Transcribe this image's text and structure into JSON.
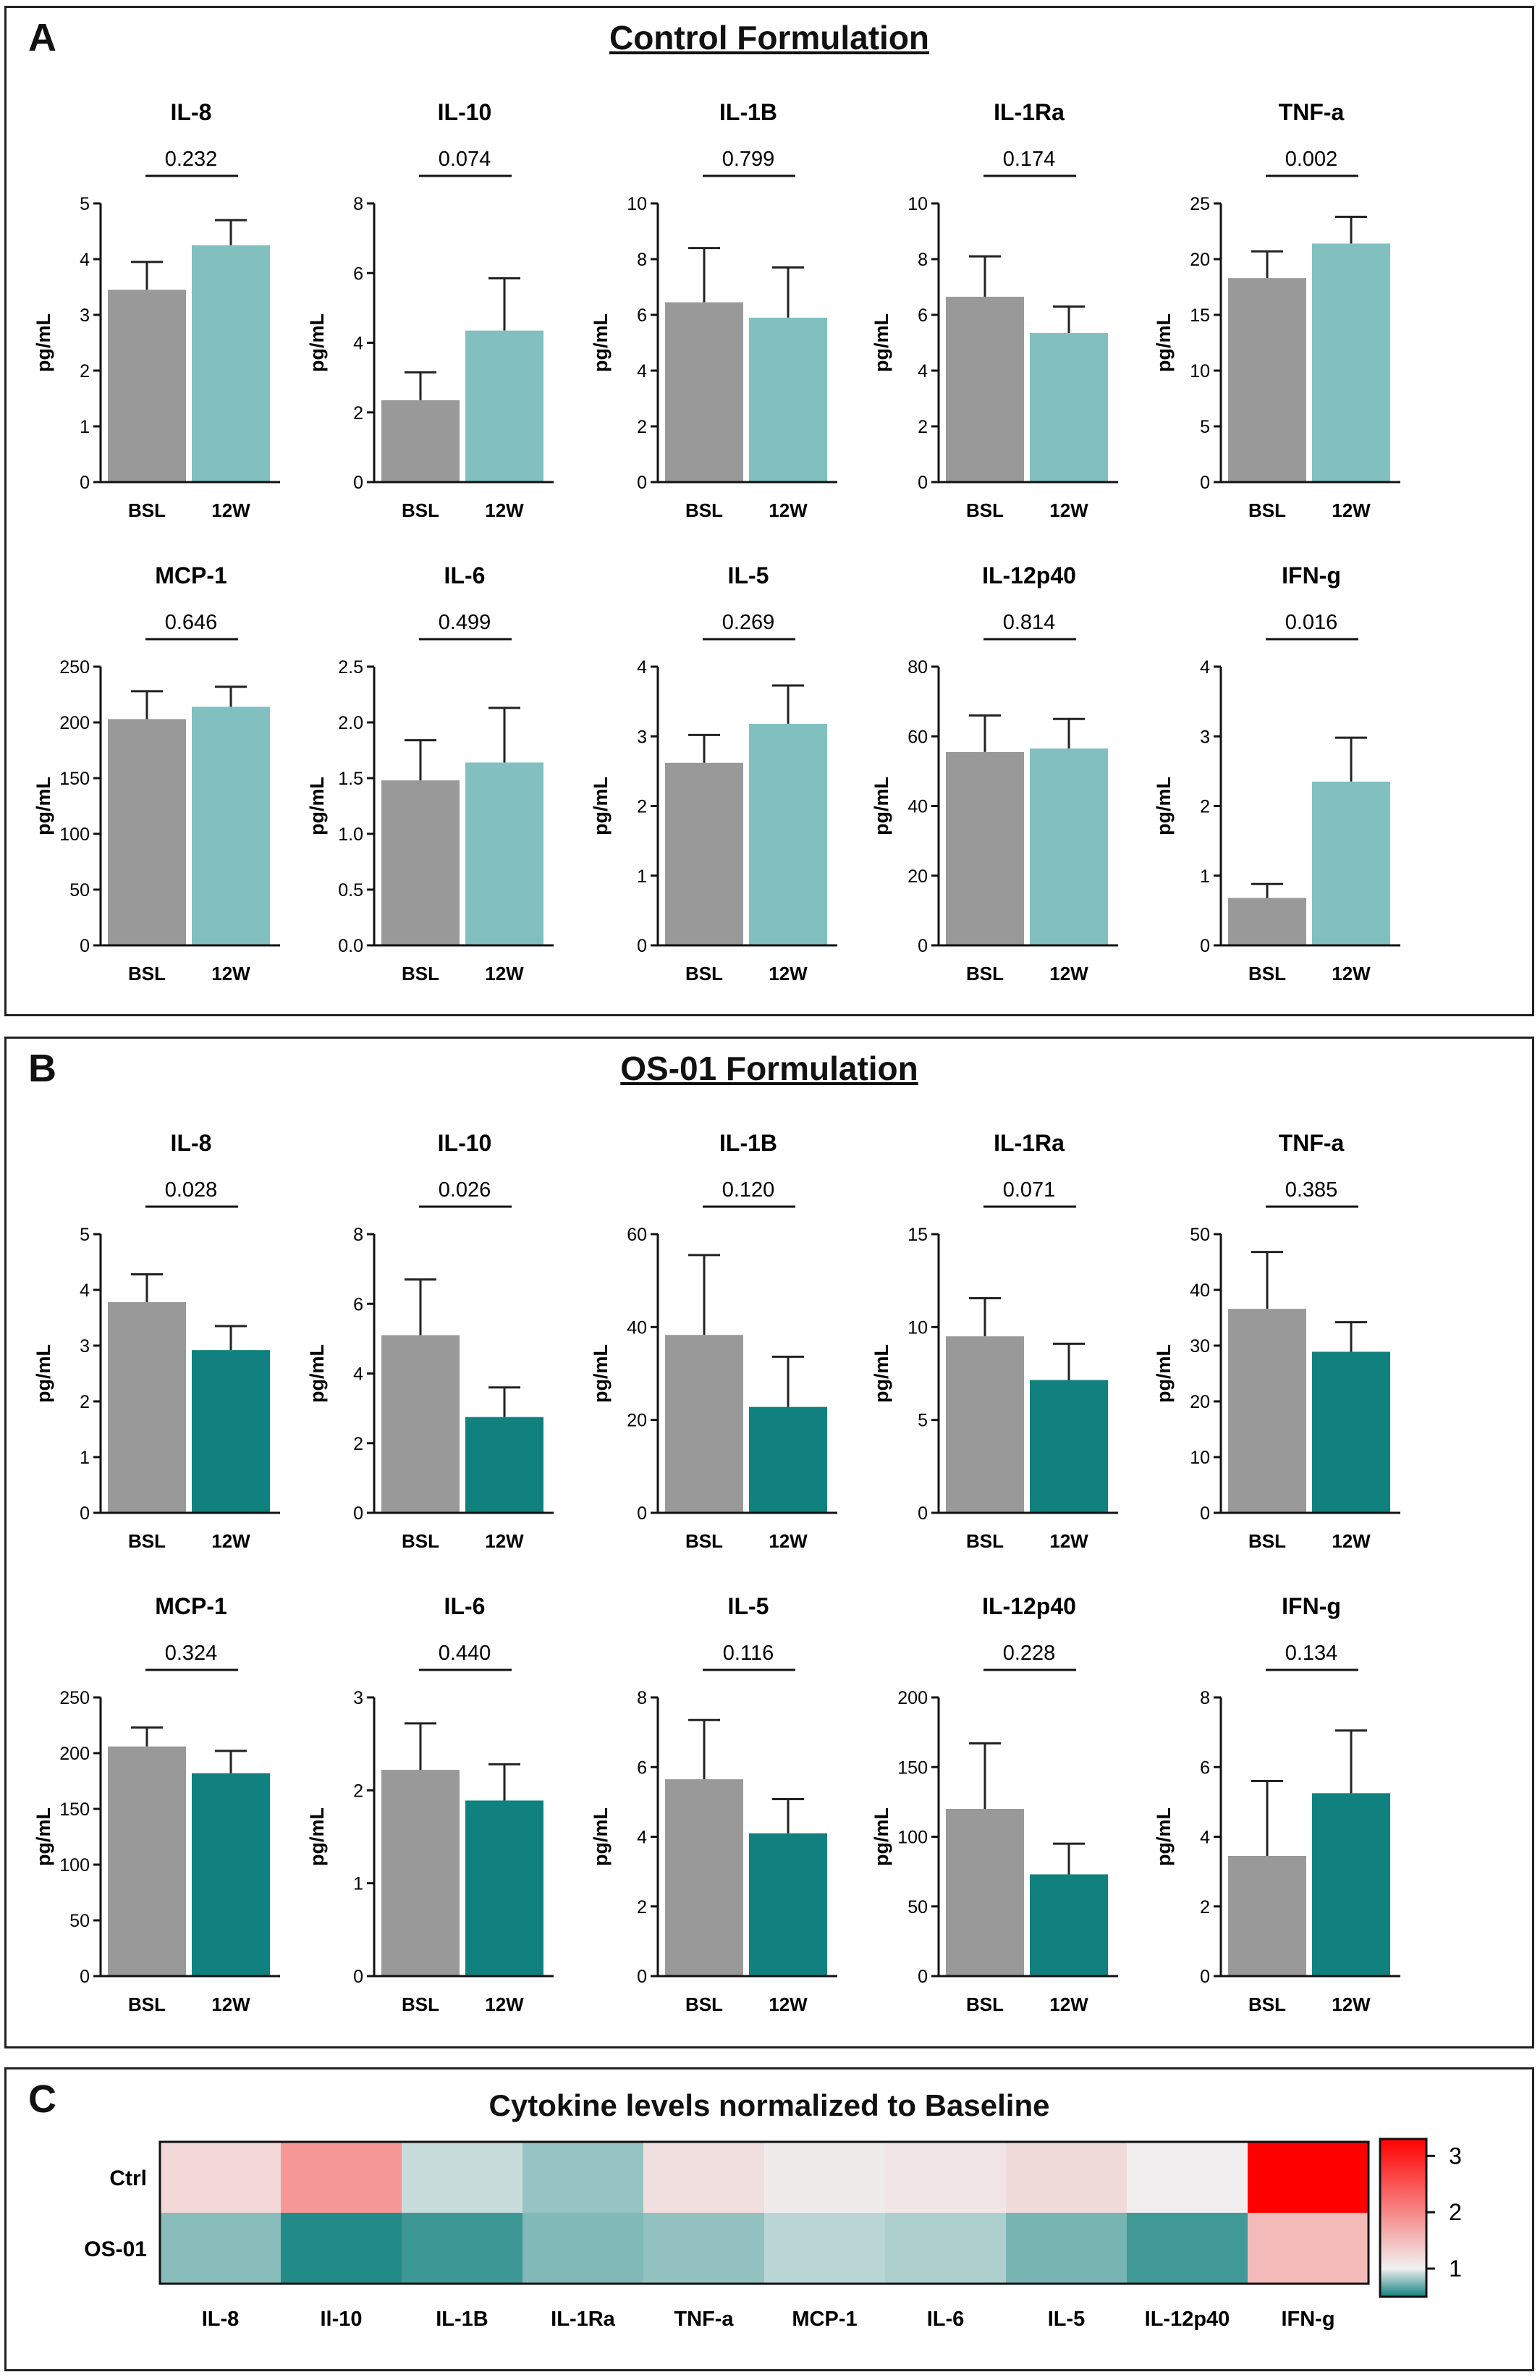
{
  "colors": {
    "bsl": "#999999",
    "ctrl_12w": "#82C0C0",
    "os01_12w": "#10817E",
    "heat_low": "#10817E",
    "heat_mid": "#F0F0F0",
    "heat_high": "#FF0000"
  },
  "panel_a": {
    "letter": "A",
    "title": "Control Formulation"
  },
  "panel_b": {
    "letter": "B",
    "title": "OS-01 Formulation"
  },
  "panel_c": {
    "letter": "C",
    "title": "Cytokine levels normalized to Baseline"
  },
  "chart_data": [
    {
      "group": "Control Formulation",
      "type": "bar",
      "categories": [
        "BSL",
        "12W"
      ],
      "ylabel": "pg/mL",
      "panels": [
        {
          "title": "IL-8",
          "p": "0.232",
          "ylim": [
            0,
            5
          ],
          "ticks": [
            "0",
            "1",
            "2",
            "3",
            "4",
            "5"
          ],
          "values": [
            3.45,
            4.25
          ],
          "errors": [
            0.5,
            0.45
          ]
        },
        {
          "title": "IL-10",
          "p": "0.074",
          "ylim": [
            0,
            8
          ],
          "ticks": [
            "0",
            "2",
            "4",
            "6",
            "8"
          ],
          "values": [
            2.35,
            4.35
          ],
          "errors": [
            0.8,
            1.5
          ]
        },
        {
          "title": "IL-1B",
          "p": "0.799",
          "ylim": [
            0,
            10
          ],
          "ticks": [
            "0",
            "2",
            "4",
            "6",
            "8",
            "10"
          ],
          "values": [
            6.45,
            5.9
          ],
          "errors": [
            1.95,
            1.8
          ]
        },
        {
          "title": "IL-1Ra",
          "p": "0.174",
          "ylim": [
            0,
            10
          ],
          "ticks": [
            "0",
            "2",
            "4",
            "6",
            "8",
            "10"
          ],
          "values": [
            6.65,
            5.35
          ],
          "errors": [
            1.45,
            0.95
          ]
        },
        {
          "title": "TNF-a",
          "p": "0.002",
          "ylim": [
            0,
            25
          ],
          "ticks": [
            "0",
            "5",
            "10",
            "15",
            "20",
            "25"
          ],
          "values": [
            18.3,
            21.4
          ],
          "errors": [
            2.4,
            2.4
          ]
        },
        {
          "title": "MCP-1",
          "p": "0.646",
          "ylim": [
            0,
            250
          ],
          "ticks": [
            "0",
            "50",
            "100",
            "150",
            "200",
            "250"
          ],
          "values": [
            203,
            214
          ],
          "errors": [
            25,
            18
          ]
        },
        {
          "title": "IL-6",
          "p": "0.499",
          "ylim": [
            0,
            2.5
          ],
          "ticks": [
            "0.0",
            "0.5",
            "1.0",
            "1.5",
            "2.0",
            "2.5"
          ],
          "values": [
            1.48,
            1.64
          ],
          "errors": [
            0.36,
            0.49
          ]
        },
        {
          "title": "IL-5",
          "p": "0.269",
          "ylim": [
            0,
            4
          ],
          "ticks": [
            "0",
            "1",
            "2",
            "3",
            "4"
          ],
          "values": [
            2.62,
            3.18
          ],
          "errors": [
            0.4,
            0.55
          ]
        },
        {
          "title": "IL-12p40",
          "p": "0.814",
          "ylim": [
            0,
            80
          ],
          "ticks": [
            "0",
            "20",
            "40",
            "60",
            "80"
          ],
          "values": [
            55.5,
            56.5
          ],
          "errors": [
            10.5,
            8.5
          ]
        },
        {
          "title": "IFN-g",
          "p": "0.016",
          "ylim": [
            0,
            4
          ],
          "ticks": [
            "0",
            "1",
            "2",
            "3",
            "4"
          ],
          "values": [
            0.68,
            2.35
          ],
          "errors": [
            0.2,
            0.63
          ]
        }
      ]
    },
    {
      "group": "OS-01 Formulation",
      "type": "bar",
      "categories": [
        "BSL",
        "12W"
      ],
      "ylabel": "pg/mL",
      "panels": [
        {
          "title": "IL-8",
          "p": "0.028",
          "ylim": [
            0,
            5
          ],
          "ticks": [
            "0",
            "1",
            "2",
            "3",
            "4",
            "5"
          ],
          "values": [
            3.78,
            2.92
          ],
          "errors": [
            0.5,
            0.43
          ]
        },
        {
          "title": "IL-10",
          "p": "0.026",
          "ylim": [
            0,
            8
          ],
          "ticks": [
            "0",
            "2",
            "4",
            "6",
            "8"
          ],
          "values": [
            5.1,
            2.75
          ],
          "errors": [
            1.6,
            0.85
          ]
        },
        {
          "title": "IL-1B",
          "p": "0.120",
          "ylim": [
            0,
            60
          ],
          "ticks": [
            "0",
            "20",
            "40",
            "60"
          ],
          "values": [
            38.3,
            22.8
          ],
          "errors": [
            17.2,
            10.8
          ]
        },
        {
          "title": "IL-1Ra",
          "p": "0.071",
          "ylim": [
            0,
            15
          ],
          "ticks": [
            "0",
            "5",
            "10",
            "15"
          ],
          "values": [
            9.5,
            7.15
          ],
          "errors": [
            2.05,
            1.95
          ]
        },
        {
          "title": "TNF-a",
          "p": "0.385",
          "ylim": [
            0,
            50
          ],
          "ticks": [
            "0",
            "10",
            "20",
            "30",
            "40",
            "50"
          ],
          "values": [
            36.6,
            28.9
          ],
          "errors": [
            10.2,
            5.3
          ]
        },
        {
          "title": "MCP-1",
          "p": "0.324",
          "ylim": [
            0,
            250
          ],
          "ticks": [
            "0",
            "50",
            "100",
            "150",
            "200",
            "250"
          ],
          "values": [
            206,
            182
          ],
          "errors": [
            17,
            20
          ]
        },
        {
          "title": "IL-6",
          "p": "0.440",
          "ylim": [
            0,
            3
          ],
          "ticks": [
            "0",
            "1",
            "2",
            "3"
          ],
          "values": [
            2.22,
            1.89
          ],
          "errors": [
            0.5,
            0.39
          ]
        },
        {
          "title": "IL-5",
          "p": "0.116",
          "ylim": [
            0,
            8
          ],
          "ticks": [
            "0",
            "2",
            "4",
            "6",
            "8"
          ],
          "values": [
            5.65,
            4.1
          ],
          "errors": [
            1.7,
            0.98
          ]
        },
        {
          "title": "IL-12p40",
          "p": "0.228",
          "ylim": [
            0,
            200
          ],
          "ticks": [
            "0",
            "50",
            "100",
            "150",
            "200"
          ],
          "values": [
            120,
            73
          ],
          "errors": [
            47,
            22
          ]
        },
        {
          "title": "IFN-g",
          "p": "0.134",
          "ylim": [
            0,
            8
          ],
          "ticks": [
            "0",
            "2",
            "4",
            "6",
            "8"
          ],
          "values": [
            3.45,
            5.25
          ],
          "errors": [
            2.15,
            1.8
          ]
        }
      ]
    },
    {
      "type": "heatmap",
      "title": "Cytokine levels normalized to Baseline",
      "rows": [
        "Ctrl",
        "OS-01"
      ],
      "columns": [
        "IL-8",
        "Il-10",
        "IL-1B",
        "IL-1Ra",
        "TNF-a",
        "MCP-1",
        "IL-6",
        "IL-5",
        "IL-12p40",
        "IFN-g"
      ],
      "values": [
        [
          1.23,
          1.85,
          0.91,
          0.8,
          1.17,
          1.05,
          1.11,
          1.21,
          1.02,
          3.46
        ],
        [
          0.77,
          0.54,
          0.6,
          0.75,
          0.79,
          0.88,
          0.85,
          0.73,
          0.61,
          1.52
        ]
      ],
      "color_scale": {
        "min": 0.5,
        "mid": 1,
        "max": 3.3,
        "ticks": [
          "1",
          "2",
          "3"
        ]
      }
    }
  ]
}
